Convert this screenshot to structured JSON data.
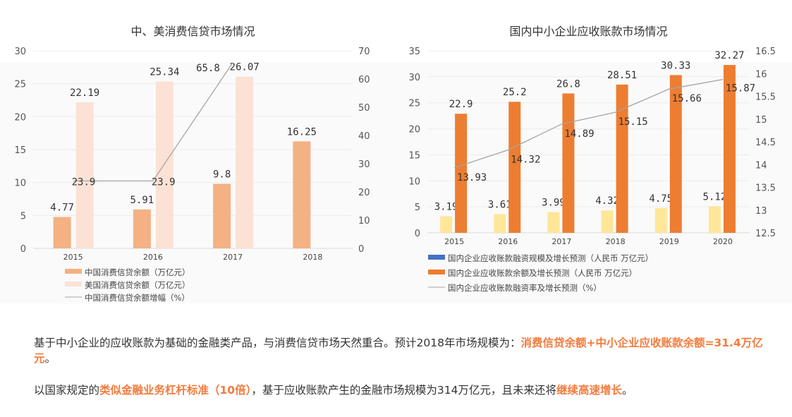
{
  "chart_data": [
    {
      "type": "bar",
      "title": "中、美消费信贷市场情况",
      "categories": [
        "2015",
        "2016",
        "2017",
        "2018"
      ],
      "left_axis": {
        "ylim": [
          0,
          30
        ],
        "ticks": [
          0,
          5,
          10,
          15,
          20,
          25,
          30
        ]
      },
      "right_axis": {
        "ylim": [
          0,
          70
        ],
        "ticks": [
          0,
          10,
          20,
          30,
          40,
          50,
          60,
          70
        ]
      },
      "series": [
        {
          "name": "中国消费信贷余额（万亿元）",
          "kind": "bar",
          "axis": "left",
          "color": "#f4b183",
          "values": [
            4.77,
            5.91,
            9.8,
            16.25
          ]
        },
        {
          "name": "美国消费信贷余额（万亿元）",
          "kind": "bar",
          "axis": "left",
          "color": "#fbe2d5",
          "values": [
            22.19,
            25.34,
            26.07,
            null
          ]
        },
        {
          "name": "中国消费信贷余额增幅（%）",
          "kind": "line",
          "axis": "right",
          "color": "#a5a5a5",
          "values": [
            23.9,
            23.9,
            65.8,
            null
          ]
        }
      ],
      "grid": true,
      "legend": "bottom-left"
    },
    {
      "type": "bar",
      "title": "国内中小企业应收账款市场情况",
      "categories": [
        "2015",
        "2016",
        "2017",
        "2018",
        "2019",
        "2020"
      ],
      "left_axis": {
        "ylim": [
          0,
          35
        ],
        "ticks": [
          0,
          5,
          10,
          15,
          20,
          25,
          30,
          35
        ]
      },
      "right_axis": {
        "ylim": [
          12.5,
          16.5
        ],
        "ticks": [
          12.5,
          13,
          13.5,
          14,
          14.5,
          15,
          15.5,
          16,
          16.5
        ]
      },
      "series": [
        {
          "name": "国内企业应收账款融资规模及增长预测（人民币 万亿元）",
          "kind": "bar",
          "axis": "left",
          "color": "#ffe699",
          "legend_color": "#4472c4",
          "values": [
            3.19,
            3.61,
            3.99,
            4.32,
            4.75,
            5.12
          ]
        },
        {
          "name": "国内企业应收账款余额及增长预测（人民币 万亿元）",
          "kind": "bar",
          "axis": "left",
          "color": "#ed7d31",
          "values": [
            22.9,
            25.2,
            26.8,
            28.51,
            30.33,
            32.27
          ]
        },
        {
          "name": "国内企业应收账款融资率及增长预测（%）",
          "kind": "line",
          "axis": "right",
          "color": "#a5a5a5",
          "values": [
            13.93,
            14.32,
            14.89,
            15.15,
            15.66,
            15.87
          ]
        }
      ],
      "grid": true,
      "legend": "bottom-left"
    }
  ],
  "text": {
    "p1_a": "基于中小企业的应收账款为基础的金融类产品，与消费信贷市场天然重合。预计2018年市场规模为：",
    "p1_hl": "消费信贷余额+中小企业应收账款余额=31.4万亿元",
    "p1_b": "。",
    "p2_a": "以国家规定的",
    "p2_hl1": "类似金融业务杠杆标准（10倍）",
    "p2_b": "，基于应收账款产生的金融市场规模为314万亿元，且未来还将",
    "p2_hl2": "继续高速增长",
    "p2_c": "。"
  }
}
